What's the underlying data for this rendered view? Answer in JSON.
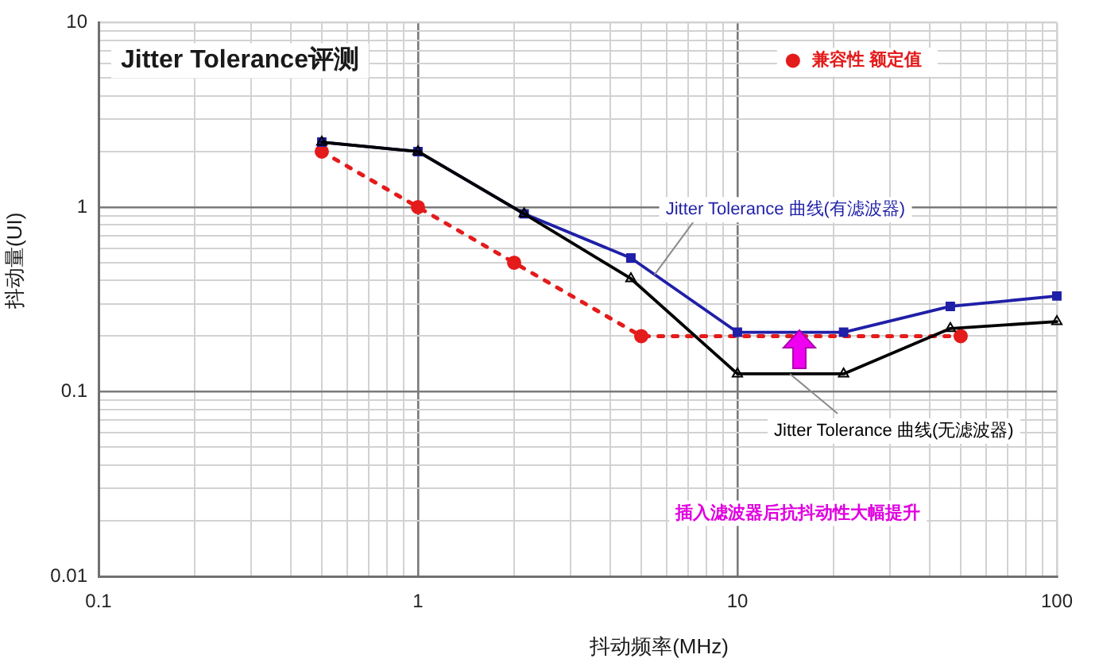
{
  "chart_data": {
    "type": "line",
    "title": "Jitter Tolerance评测",
    "xlabel": "抖动频率(MHz)",
    "ylabel": "抖动量(UI)",
    "log": "xy",
    "xlim": [
      0.1,
      100
    ],
    "ylim": [
      0.01,
      10
    ],
    "xticks": [
      0.1,
      {
        "value": 0.2,
        "label": null
      },
      {
        "value": 0.3,
        "label": null
      },
      {
        "value": 0.4,
        "label": null
      },
      {
        "value": 0.5,
        "label": null
      },
      {
        "value": 0.6,
        "label": null
      },
      {
        "value": 0.7,
        "label": null
      },
      {
        "value": 0.8,
        "label": null
      },
      {
        "value": 0.9,
        "label": null
      },
      1,
      {
        "value": 2,
        "label": null
      },
      {
        "value": 3,
        "label": null
      },
      {
        "value": 4,
        "label": null
      },
      {
        "value": 5,
        "label": null
      },
      {
        "value": 6,
        "label": null
      },
      {
        "value": 7,
        "label": null
      },
      {
        "value": 8,
        "label": null
      },
      {
        "value": 9,
        "label": null
      },
      10,
      {
        "value": 20,
        "label": null
      },
      {
        "value": 30,
        "label": null
      },
      {
        "value": 40,
        "label": null
      },
      {
        "value": 50,
        "label": null
      },
      {
        "value": 60,
        "label": null
      },
      {
        "value": 70,
        "label": null
      },
      {
        "value": 80,
        "label": null
      },
      {
        "value": 90,
        "label": null
      },
      100
    ],
    "yticks": [
      0.01,
      {
        "value": 0.02,
        "label": null
      },
      {
        "value": 0.03,
        "label": null
      },
      {
        "value": 0.04,
        "label": null
      },
      {
        "value": 0.05,
        "label": null
      },
      {
        "value": 0.06,
        "label": null
      },
      {
        "value": 0.07,
        "label": null
      },
      {
        "value": 0.08,
        "label": null
      },
      {
        "value": 0.09,
        "label": null
      },
      0.1,
      {
        "value": 0.2,
        "label": null
      },
      {
        "value": 0.3,
        "label": null
      },
      {
        "value": 0.4,
        "label": null
      },
      {
        "value": 0.5,
        "label": null
      },
      {
        "value": 0.6,
        "label": null
      },
      {
        "value": 0.7,
        "label": null
      },
      {
        "value": 0.8,
        "label": null
      },
      {
        "value": 0.9,
        "label": null
      },
      1,
      {
        "value": 2,
        "label": null
      },
      {
        "value": 3,
        "label": null
      },
      {
        "value": 4,
        "label": null
      },
      {
        "value": 5,
        "label": null
      },
      {
        "value": 6,
        "label": null
      },
      {
        "value": 7,
        "label": null
      },
      {
        "value": 8,
        "label": null
      },
      {
        "value": 9,
        "label": null
      },
      10
    ],
    "grid": true,
    "legend": "top right",
    "series": [
      {
        "name": "兼容性 额定值",
        "color": "#e41b1b",
        "x": [
          0.5,
          1,
          2,
          5,
          50
        ],
        "values": [
          2,
          1,
          0.5,
          0.2,
          0.2
        ],
        "marker": "circle",
        "line_style": "dotted"
      },
      {
        "color": "#1f1fa8",
        "x": [
          0.5,
          1,
          2.15,
          4.64,
          10,
          21.5,
          46.4,
          100
        ],
        "values": [
          2.25,
          2,
          0.92,
          0.53,
          0.21,
          0.21,
          0.29,
          0.33
        ],
        "marker": "square",
        "line_style": "solid"
      },
      {
        "color": "#000000",
        "x": [
          0.5,
          1,
          2.15,
          4.64,
          10,
          21.5,
          46.4,
          100
        ],
        "values": [
          2.25,
          2,
          0.92,
          0.41,
          0.125,
          0.125,
          0.22,
          0.24
        ],
        "marker": "triangle",
        "line_style": "solid"
      }
    ],
    "annotations": [
      {
        "text": "Jitter Tolerance 曲线(有滤波器)",
        "x": 5.5,
        "y": 0.43
      },
      {
        "text": "Jitter Tolerance 曲线(无滤波器)",
        "x": 14.6,
        "y": 0.125
      },
      "插入滤波器后抗抖动性大幅提升"
    ]
  }
}
